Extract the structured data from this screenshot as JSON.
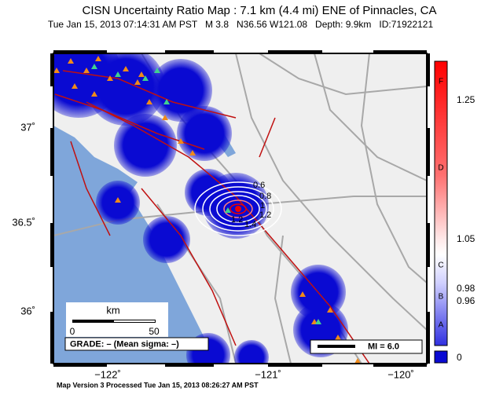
{
  "header": {
    "title": "CISN Uncertainty Ratio Map : 7.1 km (4.4 mi) ENE of Pinnacles, CA",
    "subtitle": "Tue Jan 15, 2013 07:14:31 AM PST   M 3.8   N36.56 W121.08   Depth: 9.9km   ID:71922121"
  },
  "map": {
    "lat_labels": [
      "37˚",
      "36.5˚",
      "36˚"
    ],
    "lon_labels": [
      "−122˚",
      "−121˚",
      "−120˚"
    ],
    "contour_labels": [
      "0.6",
      "0.8",
      "1",
      "1.2",
      "1.4",
      "1.2"
    ]
  },
  "scale_bar": {
    "unit": "km",
    "ticks": [
      "0",
      "50"
    ]
  },
  "grade": "GRADE: – (Mean sigma: –)",
  "intensity_legend": "MI = 6.0",
  "color_scale": {
    "grades": [
      "F",
      "D",
      "C",
      "B",
      "A"
    ],
    "ticks": [
      "1.25",
      "1.05",
      "0.98",
      "0.96",
      "0"
    ]
  },
  "footer": "Map Version 3 Processed Tue Jan 15, 2013 08:26:27 AM PST"
}
